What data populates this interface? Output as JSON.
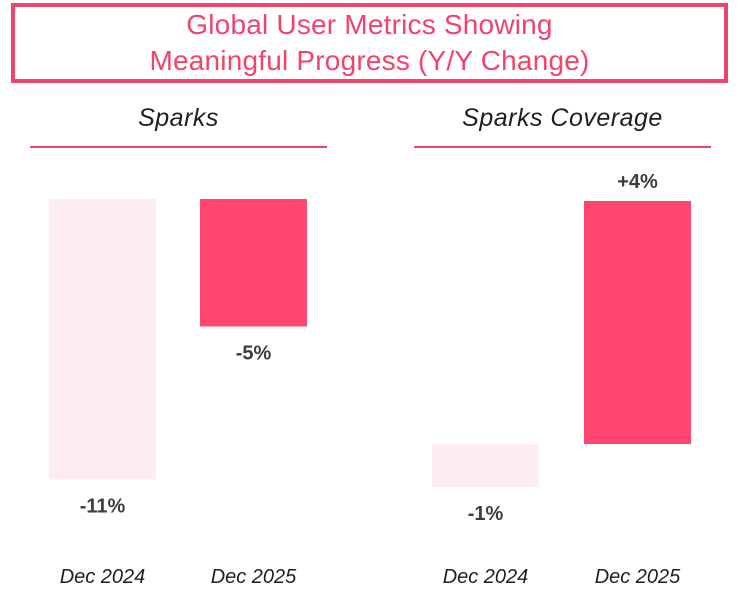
{
  "title": {
    "line1": "Global User Metrics Showing",
    "line2": "Meaningful Progress (Y/Y Change)"
  },
  "colors": {
    "accent": "#f0446c",
    "bar_prior": "#fdedf2",
    "bar_current": "#ff4670",
    "label": "#3d3d3d"
  },
  "chart_data": [
    {
      "type": "waterfall-bar",
      "title": "Sparks",
      "categories": [
        "Dec 2024",
        "Dec 2025"
      ],
      "values": [
        -11,
        -5
      ],
      "value_labels": [
        "-11%",
        "-5%"
      ],
      "unit": "%"
    },
    {
      "type": "waterfall-bar",
      "title": "Sparks Coverage",
      "categories": [
        "Dec 2024",
        "Dec 2025"
      ],
      "values": [
        -1,
        4
      ],
      "value_labels": [
        "-1%",
        "+4%"
      ],
      "unit": "%"
    }
  ]
}
